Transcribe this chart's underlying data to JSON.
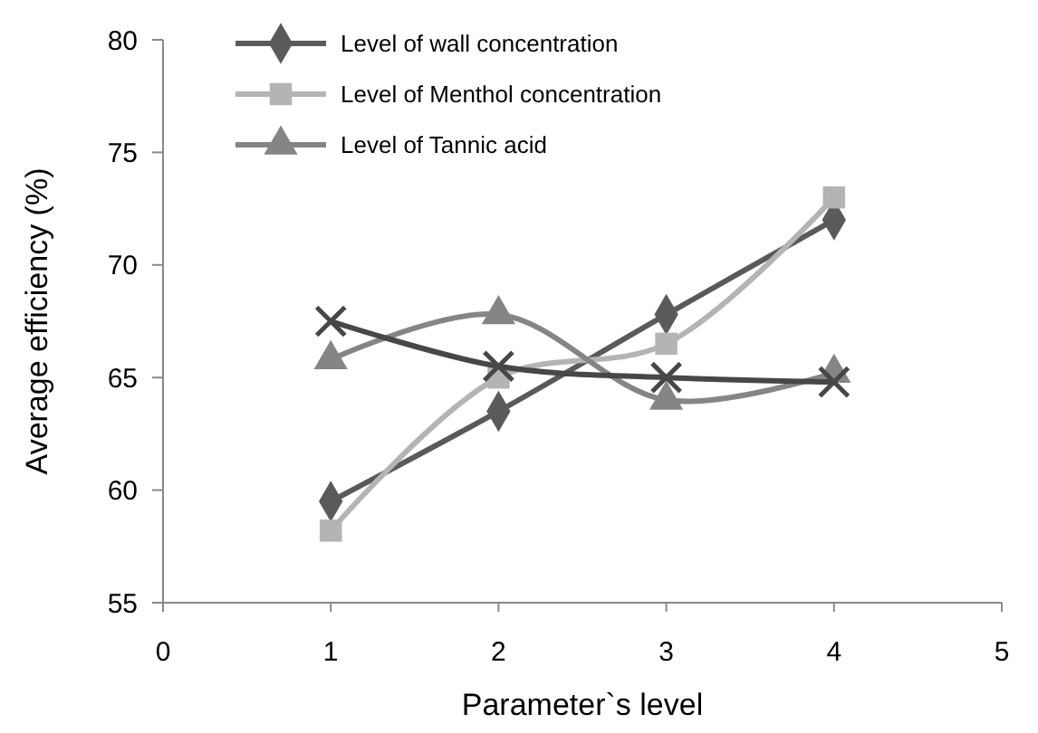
{
  "chart_data": {
    "type": "line",
    "xlabel": "Parameter`s level",
    "ylabel": "Average efficiency (%)",
    "x": [
      1,
      2,
      3,
      4
    ],
    "xlim": [
      0,
      5
    ],
    "xticks": [
      0,
      1,
      2,
      3,
      4,
      5
    ],
    "ylim": [
      55,
      80
    ],
    "yticks": [
      55,
      60,
      65,
      70,
      75,
      80
    ],
    "grid": false,
    "legend": "top left",
    "series": [
      {
        "name": "Level of wall concentration",
        "color": "#5a5a5a",
        "marker": "diamond",
        "values": [
          59.5,
          63.5,
          67.8,
          72
        ]
      },
      {
        "name": "Level of Menthol concentration",
        "color": "#b4b4b4",
        "marker": "square",
        "values": [
          58.2,
          65,
          66.5,
          73
        ]
      },
      {
        "name": "Level of Tannic acid",
        "color": "#858585",
        "marker": "triangle",
        "values": [
          65.8,
          67.8,
          64,
          65.2
        ]
      },
      {
        "color": "#474747",
        "marker": "cross",
        "values": [
          67.5,
          65.5,
          65,
          64.8
        ]
      }
    ]
  }
}
